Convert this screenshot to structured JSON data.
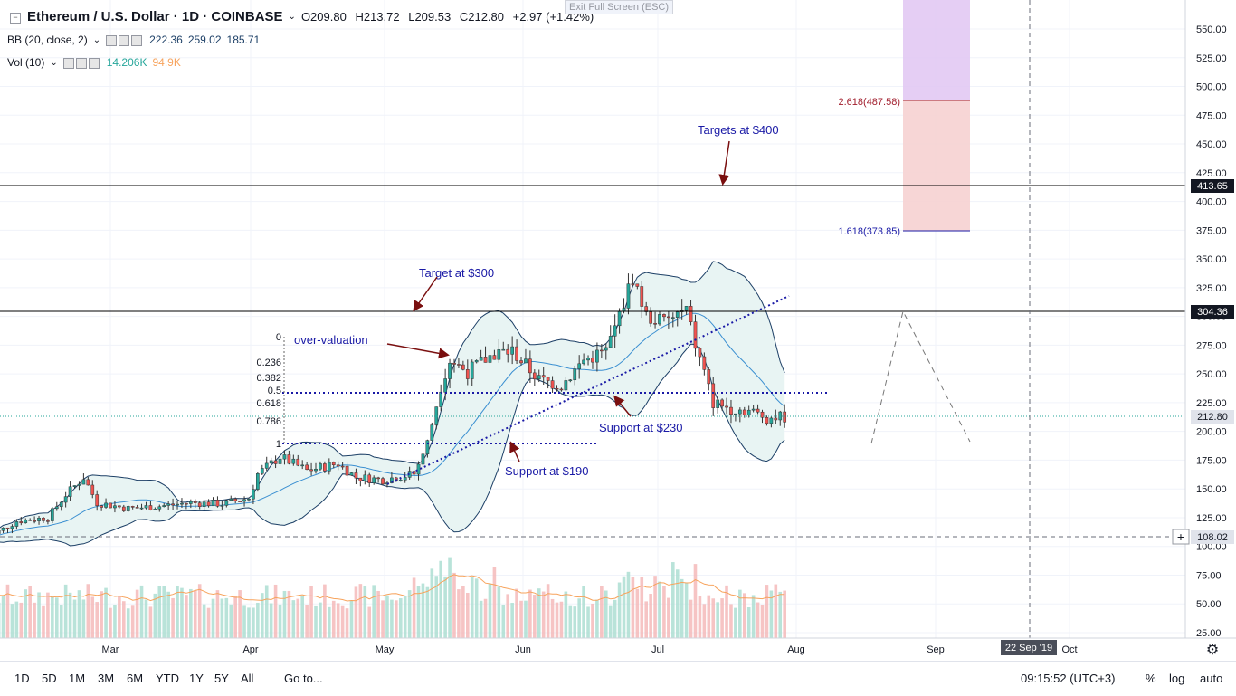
{
  "header": {
    "symbol": "Ethereum / U.S. Dollar · 1D · COINBASE",
    "open": "O209.80",
    "high": "H213.72",
    "low": "L209.53",
    "close": "C212.80",
    "change": "+2.97 (+1.42%)",
    "bb_label": "BB (20, close, 2)",
    "bb_values": [
      "222.36",
      "259.02",
      "185.71"
    ],
    "vol_label": "Vol (10)",
    "vol_values": [
      "14.206K",
      "94.9K"
    ],
    "exit_fullscreen": "Exit Full Screen (ESC)"
  },
  "price_axis": {
    "ticks": [
      "550.00",
      "525.00",
      "500.00",
      "475.00",
      "450.00",
      "425.00",
      "400.00",
      "375.00",
      "350.00",
      "325.00",
      "300.00",
      "275.00",
      "250.00",
      "225.00",
      "200.00",
      "175.00",
      "150.00",
      "125.00",
      "100.00",
      "75.00",
      "50.00",
      "25.00"
    ],
    "marker_413": "413.65",
    "marker_304": "304.36",
    "marker_current": "212.80",
    "marker_cursor": "108.02"
  },
  "time_axis": {
    "labels": [
      "Mar",
      "Apr",
      "May",
      "Jun",
      "Jul",
      "Aug",
      "Sep",
      "Oct"
    ],
    "cursor_label": "22 Sep '19"
  },
  "annotations": {
    "targets_400": "Targets at $400",
    "target_300": "Target at $300",
    "over_valuation": "over-valuation",
    "support_230": "Support at $230",
    "support_190": "Support at $190",
    "fib_2618": "2.618(487.58)",
    "fib_1618": "1.618(373.85)",
    "fib_levels": [
      "0",
      "0.236",
      "0.382",
      "0.5",
      "0.618",
      "0.786",
      "1"
    ]
  },
  "bottom_bar": {
    "timeframes": [
      "1D",
      "5D",
      "1M",
      "3M",
      "6M",
      "YTD",
      "1Y",
      "5Y",
      "All"
    ],
    "goto": "Go to...",
    "clock": "09:15:52 (UTC+3)",
    "pct": "%",
    "log": "log",
    "auto": "auto"
  },
  "colors": {
    "up": "#26a69a",
    "down": "#ef5350",
    "bb_line": "#1c6fb5",
    "bb_fill": "#e8f4f3",
    "annotation_text": "#1a1aa6",
    "arrow": "#7a0f0f",
    "vol_ma": "#f7a35c"
  },
  "chart_data": {
    "type": "candlestick",
    "title": "Ethereum / U.S. Dollar · 1D · COINBASE",
    "xlabel": "",
    "ylabel": "",
    "ylim": [
      25,
      560
    ],
    "grid": true,
    "x_range": [
      "2019-02-01",
      "2019-10-10"
    ],
    "close_series": [
      [
        "2019-02-01",
        106
      ],
      [
        "2019-02-08",
        122
      ],
      [
        "2019-02-15",
        125
      ],
      [
        "2019-02-19",
        145
      ],
      [
        "2019-02-23",
        160
      ],
      [
        "2019-02-26",
        138
      ],
      [
        "2019-03-05",
        133
      ],
      [
        "2019-03-12",
        135
      ],
      [
        "2019-03-19",
        138
      ],
      [
        "2019-03-26",
        137
      ],
      [
        "2019-04-01",
        142
      ],
      [
        "2019-04-03",
        163
      ],
      [
        "2019-04-08",
        178
      ],
      [
        "2019-04-14",
        166
      ],
      [
        "2019-04-21",
        172
      ],
      [
        "2019-04-25",
        160
      ],
      [
        "2019-05-01",
        158
      ],
      [
        "2019-05-08",
        163
      ],
      [
        "2019-05-11",
        190
      ],
      [
        "2019-05-14",
        240
      ],
      [
        "2019-05-16",
        262
      ],
      [
        "2019-05-20",
        252
      ],
      [
        "2019-05-26",
        268
      ],
      [
        "2019-05-30",
        270
      ],
      [
        "2019-06-05",
        245
      ],
      [
        "2019-06-10",
        240
      ],
      [
        "2019-06-15",
        262
      ],
      [
        "2019-06-20",
        270
      ],
      [
        "2019-06-23",
        300
      ],
      [
        "2019-06-26",
        335
      ],
      [
        "2019-06-29",
        300
      ],
      [
        "2019-07-03",
        295
      ],
      [
        "2019-07-08",
        305
      ],
      [
        "2019-07-10",
        275
      ],
      [
        "2019-07-14",
        225
      ],
      [
        "2019-07-18",
        220
      ],
      [
        "2019-07-22",
        218
      ],
      [
        "2019-07-26",
        212
      ],
      [
        "2019-07-30",
        212.8
      ]
    ],
    "volume_max": 110
  }
}
